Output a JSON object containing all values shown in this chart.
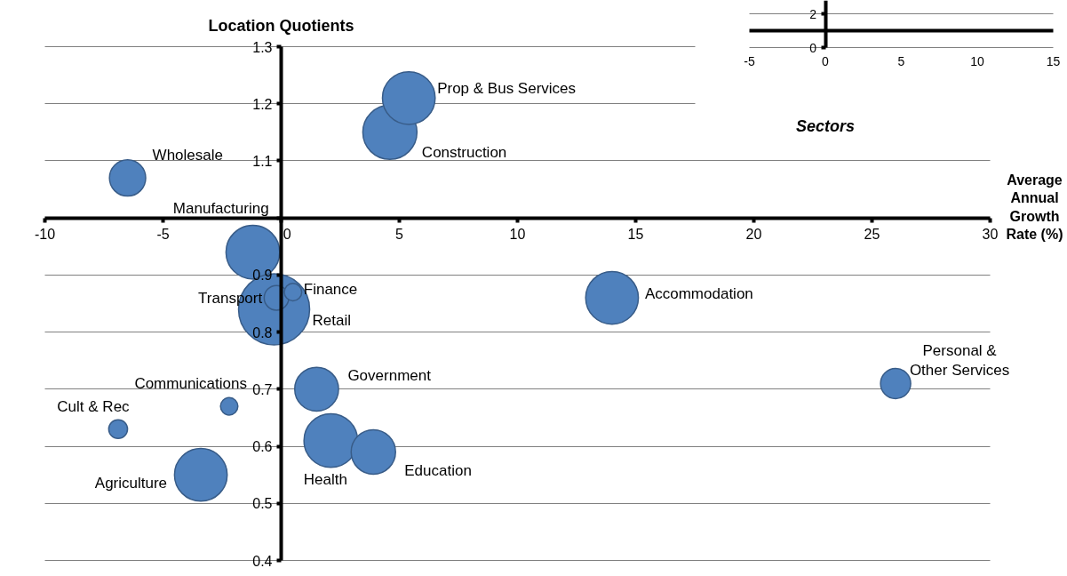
{
  "chart_data": [
    {
      "type": "bubble",
      "xlabel": "Average Annual Growth Rate (%)",
      "ylabel": "Location Quotients",
      "xlim": [
        -10,
        30
      ],
      "ylim": [
        0.4,
        1.3
      ],
      "xticks": [
        -10,
        -5,
        0,
        5,
        10,
        15,
        20,
        25,
        30
      ],
      "yticks": [
        0.4,
        0.5,
        0.6,
        0.7,
        0.8,
        0.9,
        {
          "value": 1.0,
          "label": null
        },
        1.1,
        1.2,
        1.3
      ],
      "grid": "y",
      "series": [
        {
          "name": "Construction",
          "color": "#4f81bd",
          "x": [
            4.6
          ],
          "values": [
            1.15
          ],
          "sizes": [
            0.58
          ]
        },
        {
          "name": "Prop & Bus Services",
          "color": "#4f81bd",
          "x": [
            5.4
          ],
          "values": [
            1.21
          ],
          "sizes": [
            0.55
          ]
        },
        {
          "name": "Wholesale",
          "color": "#4f81bd",
          "x": [
            -6.5
          ],
          "values": [
            1.07
          ],
          "sizes": [
            0.26
          ]
        },
        {
          "name": "Manufacturing",
          "color": "#4f81bd",
          "x": [
            -1.2
          ],
          "values": [
            0.94
          ],
          "sizes": [
            0.57
          ]
        },
        {
          "name": "Retail",
          "color": "#4f81bd",
          "x": [
            -0.3
          ],
          "values": [
            0.84
          ],
          "sizes": [
            1
          ]
        },
        {
          "name": "Transport",
          "color": "#4f81bd",
          "x": [
            -0.2
          ],
          "values": [
            0.86
          ],
          "sizes": [
            0.12
          ]
        },
        {
          "name": "Finance",
          "color": "#4f81bd",
          "x": [
            0.5
          ],
          "values": [
            0.87
          ],
          "sizes": [
            0.06
          ]
        },
        {
          "name": "Accommodation",
          "color": "#4f81bd",
          "x": [
            14.0
          ],
          "values": [
            0.86
          ],
          "sizes": [
            0.55
          ]
        },
        {
          "name": "Personal & Other Services",
          "color": "#4f81bd",
          "x": [
            26.0
          ],
          "values": [
            0.71
          ],
          "sizes": [
            0.18
          ]
        },
        {
          "name": "Government",
          "color": "#4f81bd",
          "x": [
            1.5
          ],
          "values": [
            0.7
          ],
          "sizes": [
            0.38
          ]
        },
        {
          "name": "Communications",
          "color": "#4f81bd",
          "x": [
            -2.2
          ],
          "values": [
            0.67
          ],
          "sizes": [
            0.06
          ]
        },
        {
          "name": "Cult & Rec",
          "color": "#4f81bd",
          "x": [
            -6.9
          ],
          "values": [
            0.63
          ],
          "sizes": [
            0.07
          ]
        },
        {
          "name": "Health",
          "color": "#4f81bd",
          "x": [
            2.1
          ],
          "values": [
            0.61
          ],
          "sizes": [
            0.57
          ]
        },
        {
          "name": "Education",
          "color": "#4f81bd",
          "x": [
            3.9
          ],
          "values": [
            0.59
          ],
          "sizes": [
            0.39
          ]
        },
        {
          "name": "Agriculture",
          "color": "#4f81bd",
          "x": [
            -3.4
          ],
          "values": [
            0.55
          ],
          "sizes": [
            0.55
          ]
        }
      ]
    },
    {
      "type": "bubble",
      "xlabel": "Sectors",
      "xlim": [
        -5,
        15
      ],
      "ylim": [
        0,
        2.8
      ],
      "xticks": [
        -5,
        0,
        5,
        10,
        15
      ],
      "yticks": [
        0,
        2
      ],
      "grid": "y",
      "ref_lines": [
        {
          "axis": "y",
          "value": 1,
          "color": "#000000"
        }
      ]
    }
  ]
}
